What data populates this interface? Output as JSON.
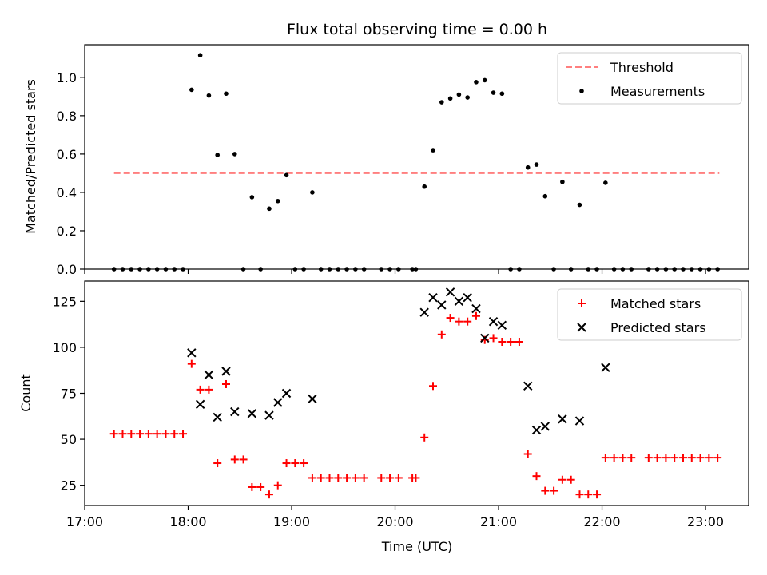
{
  "chart_data": [
    {
      "type": "scatter",
      "title": "Flux total observing time = 0.00 h",
      "xlabel": "",
      "ylabel": "Matched/Predicted stars",
      "xlim": [
        "17:00",
        "23:25"
      ],
      "ylim": [
        0,
        1.17
      ],
      "yticks": [
        0.0,
        0.2,
        0.4,
        0.6,
        0.8,
        1.0
      ],
      "ytick_labels": [
        "0.0",
        "0.2",
        "0.4",
        "0.6",
        "0.8",
        "1.0"
      ],
      "grid": false,
      "legend_position": "top-right",
      "series": [
        {
          "name": "Threshold",
          "kind": "dashed-line",
          "color": "#ff7f7f",
          "x": [
            "17:17",
            "23:08"
          ],
          "y": [
            0.5,
            0.5
          ]
        },
        {
          "name": "Measurements",
          "kind": "dot",
          "color": "#000000",
          "x": [
            "17:17",
            "17:22",
            "17:27",
            "17:32",
            "17:37",
            "17:42",
            "17:47",
            "17:52",
            "17:57",
            "18:02",
            "18:07",
            "18:12",
            "18:17",
            "18:22",
            "18:27",
            "18:32",
            "18:37",
            "18:42",
            "18:47",
            "18:52",
            "18:57",
            "19:02",
            "19:07",
            "19:12",
            "19:17",
            "19:22",
            "19:27",
            "19:32",
            "19:37",
            "19:42",
            "19:52",
            "19:57",
            "20:02",
            "20:10",
            "20:12",
            "20:17",
            "20:22",
            "20:27",
            "20:32",
            "20:37",
            "20:42",
            "20:47",
            "20:52",
            "20:57",
            "21:02",
            "21:07",
            "21:12",
            "21:17",
            "21:22",
            "21:27",
            "21:32",
            "21:37",
            "21:42",
            "21:47",
            "21:52",
            "21:57",
            "22:02",
            "22:07",
            "22:12",
            "22:17",
            "22:27",
            "22:32",
            "22:37",
            "22:42",
            "22:47",
            "22:52",
            "22:57",
            "23:02",
            "23:07"
          ],
          "y": [
            0,
            0,
            0,
            0,
            0,
            0,
            0,
            0,
            0,
            0.935,
            1.115,
            0.905,
            0.595,
            0.915,
            0.6,
            0,
            0.375,
            0,
            0.315,
            0.355,
            0.49,
            0,
            0,
            0.4,
            0,
            0,
            0,
            0,
            0,
            0,
            0,
            0,
            0,
            0,
            0,
            0.43,
            0.62,
            0.87,
            0.89,
            0.91,
            0.895,
            0.975,
            0.985,
            0.92,
            0.915,
            0,
            0,
            0.53,
            0.545,
            0.38,
            0,
            0.455,
            0,
            0.335,
            0,
            0,
            0.45,
            0,
            0,
            0,
            0,
            0,
            0,
            0,
            0,
            0,
            0,
            0,
            0
          ]
        }
      ]
    },
    {
      "type": "scatter",
      "title": "",
      "xlabel": "Time (UTC)",
      "ylabel": "Count",
      "xlim": [
        "17:00",
        "23:25"
      ],
      "ylim": [
        14,
        136
      ],
      "xticks": [
        "17:00",
        "18:00",
        "19:00",
        "20:00",
        "21:00",
        "22:00",
        "23:00"
      ],
      "yticks": [
        25,
        50,
        75,
        100,
        125
      ],
      "ytick_labels": [
        "25",
        "50",
        "75",
        "100",
        "125"
      ],
      "grid": false,
      "legend_position": "top-right",
      "series": [
        {
          "name": "Matched stars",
          "kind": "plus",
          "color": "#ff0000",
          "x": [
            "17:17",
            "17:22",
            "17:27",
            "17:32",
            "17:37",
            "17:42",
            "17:47",
            "17:52",
            "17:57",
            "18:02",
            "18:07",
            "18:12",
            "18:17",
            "18:22",
            "18:27",
            "18:32",
            "18:37",
            "18:42",
            "18:47",
            "18:52",
            "18:57",
            "19:02",
            "19:07",
            "19:12",
            "19:17",
            "19:22",
            "19:27",
            "19:32",
            "19:37",
            "19:42",
            "19:52",
            "19:57",
            "20:02",
            "20:10",
            "20:12",
            "20:17",
            "20:22",
            "20:27",
            "20:32",
            "20:37",
            "20:42",
            "20:47",
            "20:52",
            "20:57",
            "21:02",
            "21:07",
            "21:12",
            "21:17",
            "21:22",
            "21:27",
            "21:32",
            "21:37",
            "21:42",
            "21:47",
            "21:52",
            "21:57",
            "22:02",
            "22:07",
            "22:12",
            "22:17",
            "22:27",
            "22:32",
            "22:37",
            "22:42",
            "22:47",
            "22:52",
            "22:57",
            "23:02",
            "23:07"
          ],
          "y": [
            53,
            53,
            53,
            53,
            53,
            53,
            53,
            53,
            53,
            91,
            77,
            77,
            37,
            80,
            39,
            39,
            24,
            24,
            20,
            25,
            37,
            37,
            37,
            29,
            29,
            29,
            29,
            29,
            29,
            29,
            29,
            29,
            29,
            29,
            29,
            51,
            79,
            107,
            116,
            114,
            114,
            117,
            104,
            105,
            103,
            103,
            103,
            42,
            30,
            22,
            22,
            28,
            28,
            20,
            20,
            20,
            40,
            40,
            40,
            40,
            40,
            40,
            40,
            40,
            40,
            40,
            40,
            40,
            40
          ]
        },
        {
          "name": "Predicted stars",
          "kind": "cross",
          "color": "#000000",
          "x": [
            "18:02",
            "18:07",
            "18:12",
            "18:17",
            "18:22",
            "18:27",
            "18:37",
            "18:47",
            "18:52",
            "18:57",
            "19:12",
            "20:17",
            "20:22",
            "20:27",
            "20:32",
            "20:37",
            "20:42",
            "20:47",
            "20:52",
            "20:57",
            "21:02",
            "21:17",
            "21:22",
            "21:27",
            "21:37",
            "21:47",
            "22:02"
          ],
          "y": [
            97,
            69,
            85,
            62,
            87,
            65,
            64,
            63,
            70,
            75,
            72,
            119,
            127,
            123,
            130,
            125,
            127,
            121,
            105,
            114,
            112,
            79,
            55,
            57,
            61,
            60,
            89
          ]
        }
      ]
    }
  ]
}
